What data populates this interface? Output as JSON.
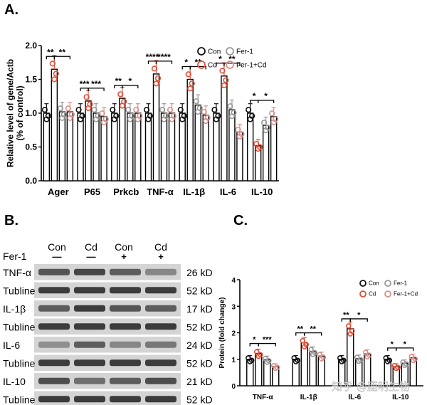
{
  "panel_labels": {
    "a": "A.",
    "b": "B.",
    "c": "C."
  },
  "colors": {
    "con": "#111111",
    "cd": "#e2503b",
    "fer": "#999999",
    "fercd": "#d9908a",
    "blot_bg": "#d4d4d4",
    "band": "#2b2b2b"
  },
  "chart_data": [
    {
      "type": "bar",
      "title": "",
      "ylabel": "Relative level of gene/Actb (% of control)",
      "ylim": [
        0,
        2.0
      ],
      "yticks": [
        "0.0",
        "0.5",
        "1.0",
        "1.5",
        "2.0"
      ],
      "categories": [
        "Ager",
        "P65",
        "Prkcb",
        "TNF-α",
        "IL-1β",
        "IL-6",
        "IL-10"
      ],
      "series": [
        {
          "name": "Con",
          "values": [
            1.0,
            1.0,
            1.0,
            1.0,
            1.0,
            1.0,
            1.0
          ]
        },
        {
          "name": "Cd",
          "values": [
            1.65,
            1.18,
            1.22,
            1.58,
            1.5,
            1.55,
            0.52
          ]
        },
        {
          "name": "Fer-1",
          "values": [
            1.02,
            1.0,
            1.0,
            1.0,
            1.12,
            1.05,
            0.82
          ]
        },
        {
          "name": "Fer-1+Cd",
          "values": [
            1.02,
            0.95,
            1.0,
            1.0,
            0.97,
            0.72,
            0.95
          ]
        }
      ],
      "significance": [
        {
          "category": "Ager",
          "marks": [
            "**",
            "**"
          ]
        },
        {
          "category": "P65",
          "marks": [
            "***",
            "***"
          ]
        },
        {
          "category": "Prkcb",
          "marks": [
            "**",
            "*"
          ]
        },
        {
          "category": "TNF-α",
          "marks": [
            "****",
            "****"
          ]
        },
        {
          "category": "IL-1β",
          "marks": [
            "*",
            "**"
          ]
        },
        {
          "category": "IL-6",
          "marks": [
            "*",
            "**"
          ]
        },
        {
          "category": "IL-10",
          "marks": [
            "*",
            "*"
          ]
        }
      ],
      "legend": [
        "Con",
        "Cd",
        "Fer-1",
        "Fer-1+Cd"
      ],
      "legend_position": "top-right"
    },
    {
      "type": "bar",
      "title": "",
      "ylabel": "Protein (fold change)",
      "ylim": [
        0,
        4
      ],
      "yticks": [
        "0",
        "1",
        "2",
        "3",
        "4"
      ],
      "categories": [
        "TNF-α",
        "IL-1β",
        "IL-6",
        "IL-10"
      ],
      "series": [
        {
          "name": "Con",
          "values": [
            1.0,
            1.0,
            1.0,
            1.0
          ]
        },
        {
          "name": "Cd",
          "values": [
            1.22,
            1.62,
            2.15,
            0.72
          ]
        },
        {
          "name": "Fer-1",
          "values": [
            0.98,
            1.3,
            1.02,
            0.85
          ]
        },
        {
          "name": "Fer-1+Cd",
          "values": [
            0.72,
            1.12,
            1.2,
            1.05
          ]
        }
      ],
      "significance": [
        {
          "category": "TNF-α",
          "marks": [
            "*",
            "***"
          ]
        },
        {
          "category": "IL-1β",
          "marks": [
            "**",
            "**"
          ]
        },
        {
          "category": "IL-6",
          "marks": [
            "**",
            "*"
          ]
        },
        {
          "category": "IL-10",
          "marks": [
            "*",
            "*"
          ]
        }
      ],
      "legend": [
        "Con",
        "Cd",
        "Fer-1",
        "Fer-1+Cd"
      ],
      "legend_position": "top-right"
    }
  ],
  "western_blot": {
    "header_row1": [
      "Con",
      "Cd",
      "Con",
      "Cd"
    ],
    "treatment_label": "Fer-1",
    "header_row2": [
      "—",
      "—",
      "+",
      "+"
    ],
    "rows": [
      {
        "name": "TNF-α",
        "size": "26 kD",
        "intensity": [
          0.75,
          0.85,
          0.7,
          0.45
        ]
      },
      {
        "name": "Tubline",
        "size": "52 kD",
        "intensity": [
          0.9,
          0.9,
          0.9,
          0.9
        ]
      },
      {
        "name": "IL-1β",
        "size": "17 kD",
        "intensity": [
          0.7,
          0.9,
          0.75,
          0.7
        ]
      },
      {
        "name": "Tubline",
        "size": "52 kD",
        "intensity": [
          0.9,
          0.9,
          0.9,
          0.9
        ]
      },
      {
        "name": "IL-6",
        "size": "24 kD",
        "intensity": [
          0.4,
          0.7,
          0.45,
          0.55
        ]
      },
      {
        "name": "Tubline",
        "size": "52 kD",
        "intensity": [
          0.9,
          0.9,
          0.9,
          0.9
        ]
      },
      {
        "name": "IL-10",
        "size": "21 kD",
        "intensity": [
          0.8,
          0.6,
          0.7,
          0.8
        ]
      },
      {
        "name": "Tubline",
        "size": "52 kD",
        "intensity": [
          0.9,
          0.9,
          0.9,
          0.9
        ]
      }
    ]
  },
  "watermark": "知乎 @鹿明生物"
}
